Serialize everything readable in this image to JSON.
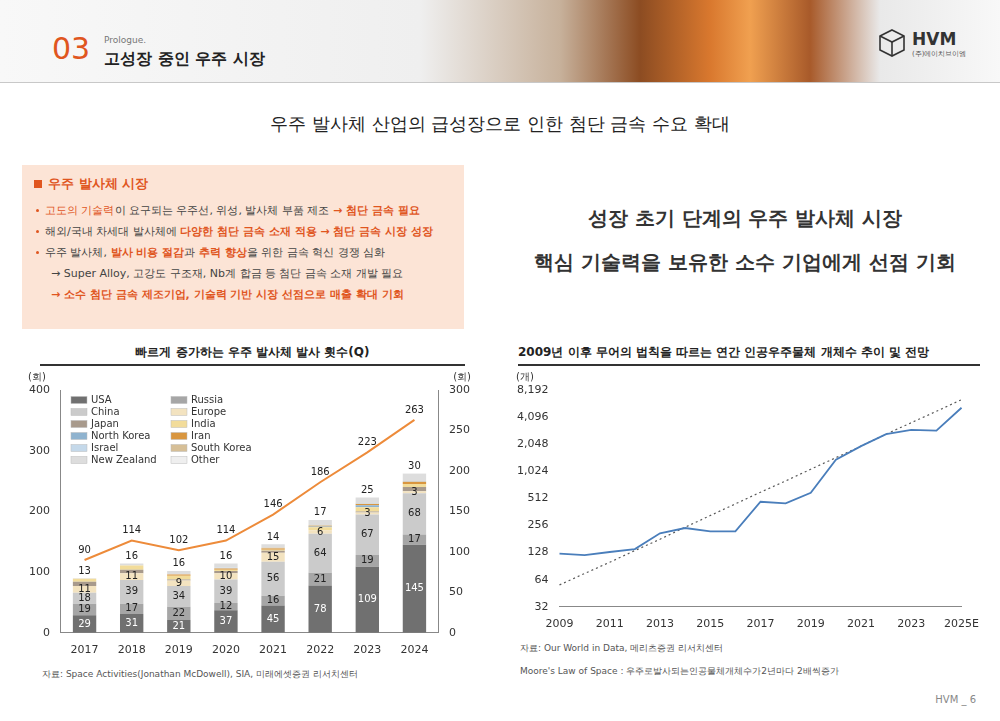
{
  "header": {
    "number": "03",
    "kicker": "Prologue.",
    "title": "고성장 중인 우주 시장",
    "logo": "HVM",
    "logo_sub": "(주)에이치브이엠"
  },
  "headline": "우주 발사체 산업의 급성장으로 인한 첨단 금속 수요 확대",
  "market_box": {
    "title": "우주 발사체 시장",
    "bullets": [
      {
        "segments": [
          {
            "text": "고도의 기술력",
            "style": "accent"
          },
          {
            "text": "이 요구되는 우주선, 위성, 발사체 부품 제조 "
          },
          {
            "text": "→ 첨단 금속 필요",
            "style": "accent-bold"
          }
        ]
      },
      {
        "segments": [
          {
            "text": "해외/국내 차세대 발사체에 "
          },
          {
            "text": "다양한 첨단 금속 소재 적용 → 첨단 금속 시장 성장",
            "style": "accent-bold"
          }
        ]
      },
      {
        "segments": [
          {
            "text": "우주 발사체, "
          },
          {
            "text": "발사 비용 절감",
            "style": "accent-bold"
          },
          {
            "text": "과 "
          },
          {
            "text": "추력 향상",
            "style": "accent-bold"
          },
          {
            "text": "을 위한 금속 혁신 경쟁 심화"
          }
        ],
        "sub": [
          {
            "segments": [
              {
                "text": "→ Super Alloy, 고강도 구조재, Nb계 합금 등 첨단 금속 소재 개발 필요"
              }
            ]
          },
          {
            "segments": [
              {
                "text": "→ 소수 첨단 금속 제조기업, 기술력 기반 시장 선점으로 매출 확대 기회",
                "style": "accent-bold"
              }
            ]
          }
        ]
      }
    ]
  },
  "callout": [
    "성장 초기 단계의 우주 발사체 시장",
    "핵심 기술력을 보유한 소수 기업에게 선점 기회"
  ],
  "footer": "HVM _ 6",
  "chart_data": [
    {
      "type": "bar",
      "title": "빠르게 증가하는 우주 발사체 발사 횟수(Q)",
      "source": "자료: Space Activities(Jonathan McDowell), SIA, 미래에셋증권 리서치센터",
      "ylabel": "(회)",
      "y2label": "(회)",
      "categories": [
        "2017",
        "2018",
        "2019",
        "2020",
        "2021",
        "2022",
        "2023",
        "2024"
      ],
      "stacked": true,
      "grid": false,
      "legend": "upper left",
      "ylim": [
        0,
        400
      ],
      "yticks": [
        0,
        100,
        200,
        300,
        400
      ],
      "y2lim": [
        0,
        300
      ],
      "y2ticks": [
        0,
        50,
        100,
        150,
        200,
        250,
        300
      ],
      "series": [
        {
          "name": "USA",
          "color": "#707070",
          "values": [
            29,
            31,
            21,
            37,
            45,
            78,
            109,
            145
          ],
          "data_labels": true
        },
        {
          "name": "Russia",
          "color": "#a6a6a6",
          "values": [
            19,
            17,
            22,
            12,
            16,
            21,
            19,
            17
          ],
          "data_labels": true
        },
        {
          "name": "China",
          "color": "#cbcbcb",
          "values": [
            18,
            39,
            34,
            39,
            56,
            64,
            67,
            68
          ],
          "data_labels": true
        },
        {
          "name": "Europe",
          "color": "#f3e3c0",
          "values": [
            11,
            11,
            9,
            10,
            15,
            6,
            3,
            3
          ],
          "data_labels": true
        },
        {
          "name": "Japan",
          "color": "#a89a8c",
          "values": [
            7,
            6,
            2,
            4,
            3,
            0,
            2,
            7
          ]
        },
        {
          "name": "India",
          "color": "#f2dc9a",
          "values": [
            5,
            7,
            6,
            2,
            2,
            5,
            7,
            5
          ]
        },
        {
          "name": "North Korea",
          "color": "#8fb3cf",
          "values": [
            0,
            0,
            0,
            0,
            0,
            1,
            3,
            0
          ]
        },
        {
          "name": "Iran",
          "color": "#d9963f",
          "values": [
            0,
            0,
            2,
            2,
            2,
            1,
            2,
            4
          ]
        },
        {
          "name": "Israel",
          "color": "#c5d9ea",
          "values": [
            0,
            0,
            0,
            1,
            0,
            0,
            1,
            1
          ]
        },
        {
          "name": "South Korea",
          "color": "#d6bf97",
          "values": [
            0,
            0,
            0,
            0,
            1,
            1,
            1,
            0
          ]
        },
        {
          "name": "New Zealand",
          "color": "#dddddd",
          "values": [
            1,
            3,
            6,
            7,
            6,
            9,
            9,
            12
          ]
        },
        {
          "name": "Other",
          "color": "#efefef",
          "values": [
            0,
            0,
            0,
            0,
            0,
            0,
            0,
            1
          ]
        },
        {
          "type": "line",
          "axis": "y2",
          "color": "#ed8b3a",
          "marker": "none",
          "line_style": "solid",
          "data_labels": true,
          "values": [
            90,
            114,
            102,
            114,
            146,
            186,
            223,
            263
          ]
        }
      ],
      "annotations": [
        {
          "category": "2017",
          "value": 13
        },
        {
          "category": "2018",
          "value": 16
        },
        {
          "category": "2019",
          "value": 16
        },
        {
          "category": "2020",
          "value": 16
        },
        {
          "category": "2021",
          "value": 14
        },
        {
          "category": "2022",
          "value": 17
        },
        {
          "category": "2023",
          "value": 25
        },
        {
          "category": "2024",
          "value": 30
        }
      ]
    },
    {
      "type": "line",
      "title": "2009년 이후 무어의 법칙을 따르는 연간 인공우주물체 개체수 추이 및 전망",
      "source": "자료: Our World in Data, 메리츠증권 리서치센터",
      "note": "Moore's Law of Space : 우주로발사되는인공물체개체수가2년마다 2배씩증가",
      "ylabel": "(개)",
      "log": "y",
      "grid": false,
      "categories": [
        "2009",
        null,
        "2011",
        null,
        "2013",
        null,
        "2015",
        null,
        "2017",
        null,
        "2019",
        null,
        "2021",
        null,
        "2023",
        null,
        "2025E"
      ],
      "ylim": [
        32,
        8192
      ],
      "yticks": [
        32,
        64,
        128,
        256,
        512,
        {
          "value": 1024,
          "label": "1,024"
        },
        {
          "value": 2048,
          "label": "2,048"
        },
        {
          "value": 4096,
          "label": "4,096"
        },
        {
          "value": 8192,
          "label": "8,192"
        }
      ],
      "series": [
        {
          "color": "#4a7ebb",
          "marker": "none",
          "line_style": "solid",
          "values": [
            125,
            120,
            130,
            140,
            210,
            240,
            220,
            220,
            470,
            450,
            590,
            1380,
            1950,
            2650,
            2950,
            2900,
            5200
          ]
        },
        {
          "color": "#595959",
          "marker": "none",
          "line_style": "dotted",
          "values": [
            56,
            75,
            100,
            135,
            180,
            245,
            330,
            445,
            600,
            800,
            1080,
            1450,
            1950,
            2650,
            3550,
            4750,
            6400
          ]
        }
      ]
    }
  ]
}
